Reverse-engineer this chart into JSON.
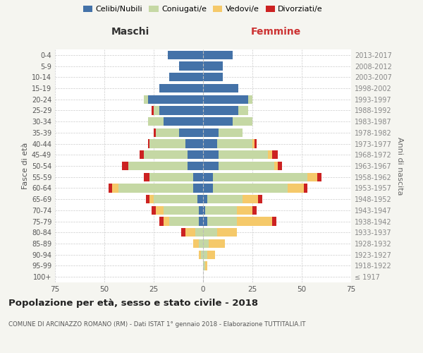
{
  "age_groups": [
    "100+",
    "95-99",
    "90-94",
    "85-89",
    "80-84",
    "75-79",
    "70-74",
    "65-69",
    "60-64",
    "55-59",
    "50-54",
    "45-49",
    "40-44",
    "35-39",
    "30-34",
    "25-29",
    "20-24",
    "15-19",
    "10-14",
    "5-9",
    "0-4"
  ],
  "birth_years": [
    "≤ 1917",
    "1918-1922",
    "1923-1927",
    "1928-1932",
    "1933-1937",
    "1938-1942",
    "1943-1947",
    "1948-1952",
    "1953-1957",
    "1958-1962",
    "1963-1967",
    "1968-1972",
    "1973-1977",
    "1978-1982",
    "1983-1987",
    "1988-1992",
    "1993-1997",
    "1998-2002",
    "2003-2007",
    "2008-2012",
    "2013-2017"
  ],
  "maschi": {
    "celibi": [
      0,
      0,
      0,
      0,
      0,
      2,
      2,
      3,
      5,
      5,
      8,
      8,
      9,
      12,
      20,
      22,
      28,
      22,
      17,
      12,
      18
    ],
    "coniugati": [
      0,
      0,
      1,
      2,
      4,
      15,
      18,
      22,
      38,
      22,
      30,
      22,
      18,
      12,
      8,
      3,
      2,
      0,
      0,
      0,
      0
    ],
    "vedovi": [
      0,
      0,
      1,
      3,
      5,
      3,
      4,
      2,
      3,
      0,
      0,
      0,
      0,
      0,
      0,
      0,
      0,
      0,
      0,
      0,
      0
    ],
    "divorziati": [
      0,
      0,
      0,
      0,
      2,
      2,
      2,
      2,
      2,
      3,
      3,
      2,
      1,
      1,
      0,
      1,
      0,
      0,
      0,
      0,
      0
    ]
  },
  "femmine": {
    "nubili": [
      0,
      0,
      0,
      0,
      0,
      2,
      1,
      2,
      5,
      5,
      8,
      8,
      7,
      8,
      15,
      18,
      23,
      18,
      10,
      10,
      15
    ],
    "coniugate": [
      0,
      1,
      2,
      3,
      7,
      15,
      16,
      18,
      38,
      48,
      28,
      25,
      18,
      12,
      10,
      5,
      2,
      0,
      0,
      0,
      0
    ],
    "vedove": [
      0,
      1,
      4,
      8,
      10,
      18,
      8,
      8,
      8,
      5,
      2,
      2,
      1,
      0,
      0,
      0,
      0,
      0,
      0,
      0,
      0
    ],
    "divorziate": [
      0,
      0,
      0,
      0,
      0,
      2,
      2,
      2,
      2,
      2,
      2,
      3,
      1,
      0,
      0,
      0,
      0,
      0,
      0,
      0,
      0
    ]
  },
  "colors": {
    "celibi": "#4472a8",
    "coniugati": "#c5d8a4",
    "vedovi": "#f5c96a",
    "divorziati": "#cc2222"
  },
  "xlim": 75,
  "title": "Popolazione per età, sesso e stato civile - 2018",
  "subtitle": "COMUNE DI ARCINAZZO ROMANO (RM) - Dati ISTAT 1° gennaio 2018 - Elaborazione TUTTITALIA.IT",
  "ylabel_left": "Fasce di età",
  "ylabel_right": "Anni di nascita",
  "xlabel_maschi": "Maschi",
  "xlabel_femmine": "Femmine",
  "bg_color": "#f5f5f0",
  "plot_bg": "#ffffff"
}
